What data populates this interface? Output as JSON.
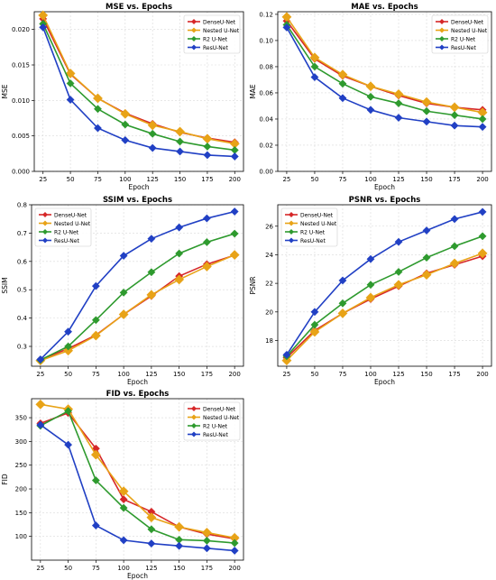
{
  "colors": {
    "DenseU-Net": "#d62728",
    "Nested U-Net": "#e8a317",
    "R2 U-Net": "#2e9a2e",
    "ResU-Net": "#2140c4"
  },
  "chart_data": [
    {
      "type": "line",
      "title": "MSE vs. Epochs",
      "xlabel": "Epoch",
      "ylabel": "MSE",
      "x": [
        25,
        50,
        75,
        100,
        125,
        150,
        175,
        200
      ],
      "xlim": [
        17,
        208
      ],
      "ylim": [
        0,
        0.0225
      ],
      "yticks": [
        0.0,
        0.005,
        0.01,
        0.015,
        0.02
      ],
      "ytick_labels": [
        "0.000",
        "0.005",
        "0.010",
        "0.015",
        "0.020"
      ],
      "grid": true,
      "legend": "top-right",
      "series": [
        {
          "name": "DenseU-Net",
          "values": [
            0.0215,
            0.0137,
            0.0103,
            0.0082,
            0.0067,
            0.0055,
            0.0047,
            0.0041
          ]
        },
        {
          "name": "Nested U-Net",
          "values": [
            0.022,
            0.0138,
            0.0103,
            0.0081,
            0.0065,
            0.0056,
            0.0046,
            0.0039
          ]
        },
        {
          "name": "R2 U-Net",
          "values": [
            0.0208,
            0.0124,
            0.0088,
            0.0066,
            0.0053,
            0.0042,
            0.0035,
            0.003
          ]
        },
        {
          "name": "ResU-Net",
          "values": [
            0.0203,
            0.0101,
            0.0061,
            0.0044,
            0.0033,
            0.0028,
            0.0023,
            0.0021
          ]
        }
      ]
    },
    {
      "type": "line",
      "title": "MAE vs. Epochs",
      "xlabel": "Epoch",
      "ylabel": "MAE",
      "x": [
        25,
        50,
        75,
        100,
        125,
        150,
        175,
        200
      ],
      "xlim": [
        17,
        208
      ],
      "ylim": [
        0,
        0.122
      ],
      "yticks": [
        0.0,
        0.02,
        0.04,
        0.06,
        0.08,
        0.1,
        0.12
      ],
      "ytick_labels": [
        "0.00",
        "0.02",
        "0.04",
        "0.06",
        "0.08",
        "0.10",
        "0.12"
      ],
      "grid": true,
      "legend": "top-right",
      "series": [
        {
          "name": "DenseU-Net",
          "values": [
            0.115,
            0.086,
            0.073,
            0.065,
            0.058,
            0.052,
            0.049,
            0.047
          ]
        },
        {
          "name": "Nested U-Net",
          "values": [
            0.118,
            0.087,
            0.074,
            0.065,
            0.059,
            0.053,
            0.049,
            0.045
          ]
        },
        {
          "name": "R2 U-Net",
          "values": [
            0.112,
            0.08,
            0.067,
            0.057,
            0.052,
            0.046,
            0.043,
            0.04
          ]
        },
        {
          "name": "ResU-Net",
          "values": [
            0.11,
            0.072,
            0.056,
            0.047,
            0.041,
            0.038,
            0.035,
            0.034
          ]
        }
      ]
    },
    {
      "type": "line",
      "title": "SSIM vs. Epochs",
      "xlabel": "Epoch",
      "ylabel": "SSIM",
      "x": [
        25,
        50,
        75,
        100,
        125,
        150,
        175,
        200
      ],
      "xlim": [
        17,
        208
      ],
      "ylim": [
        0.23,
        0.8
      ],
      "yticks": [
        0.3,
        0.4,
        0.5,
        0.6,
        0.7,
        0.8
      ],
      "ytick_labels": [
        "0.3",
        "0.4",
        "0.5",
        "0.6",
        "0.7",
        "0.8"
      ],
      "grid": true,
      "legend": "top-left",
      "series": [
        {
          "name": "DenseU-Net",
          "values": [
            0.253,
            0.292,
            0.34,
            0.413,
            0.478,
            0.548,
            0.59,
            0.622
          ]
        },
        {
          "name": "Nested U-Net",
          "values": [
            0.25,
            0.285,
            0.338,
            0.413,
            0.482,
            0.536,
            0.582,
            0.623
          ]
        },
        {
          "name": "R2 U-Net",
          "values": [
            0.252,
            0.3,
            0.393,
            0.49,
            0.562,
            0.628,
            0.668,
            0.698
          ]
        },
        {
          "name": "ResU-Net",
          "values": [
            0.254,
            0.352,
            0.513,
            0.62,
            0.68,
            0.72,
            0.752,
            0.776
          ]
        }
      ]
    },
    {
      "type": "line",
      "title": "PSNR vs. Epochs",
      "xlabel": "Epoch",
      "ylabel": "PSNR",
      "x": [
        25,
        50,
        75,
        100,
        125,
        150,
        175,
        200
      ],
      "xlim": [
        17,
        208
      ],
      "ylim": [
        16.2,
        27.5
      ],
      "yticks": [
        18,
        20,
        22,
        24,
        26
      ],
      "ytick_labels": [
        "18",
        "20",
        "22",
        "24",
        "26"
      ],
      "grid": true,
      "legend": "top-left",
      "series": [
        {
          "name": "DenseU-Net",
          "values": [
            16.8,
            18.7,
            19.9,
            20.9,
            21.8,
            22.7,
            23.3,
            23.9
          ]
        },
        {
          "name": "Nested U-Net",
          "values": [
            16.6,
            18.6,
            19.9,
            21.0,
            21.9,
            22.6,
            23.4,
            24.1
          ]
        },
        {
          "name": "R2 U-Net",
          "values": [
            16.9,
            19.1,
            20.6,
            21.9,
            22.8,
            23.8,
            24.6,
            25.3
          ]
        },
        {
          "name": "ResU-Net",
          "values": [
            17.0,
            20.0,
            22.2,
            23.7,
            24.9,
            25.7,
            26.5,
            27.0
          ]
        }
      ]
    },
    {
      "type": "line",
      "title": "FID vs. Epochs",
      "xlabel": "Epoch",
      "ylabel": "FID",
      "x": [
        25,
        50,
        75,
        100,
        125,
        150,
        175,
        200
      ],
      "xlim": [
        17,
        208
      ],
      "ylim": [
        50,
        390
      ],
      "yticks": [
        100,
        150,
        200,
        250,
        300,
        350
      ],
      "ytick_labels": [
        "100",
        "150",
        "200",
        "250",
        "300",
        "350"
      ],
      "grid": true,
      "legend": "top-right",
      "series": [
        {
          "name": "DenseU-Net",
          "values": [
            338,
            360,
            285,
            178,
            152,
            120,
            105,
            95
          ]
        },
        {
          "name": "Nested U-Net",
          "values": [
            378,
            368,
            272,
            195,
            140,
            120,
            108,
            97
          ]
        },
        {
          "name": "R2 U-Net",
          "values": [
            333,
            364,
            218,
            160,
            115,
            93,
            91,
            86
          ]
        },
        {
          "name": "ResU-Net",
          "values": [
            335,
            293,
            123,
            92,
            85,
            80,
            75,
            70
          ]
        }
      ]
    }
  ]
}
